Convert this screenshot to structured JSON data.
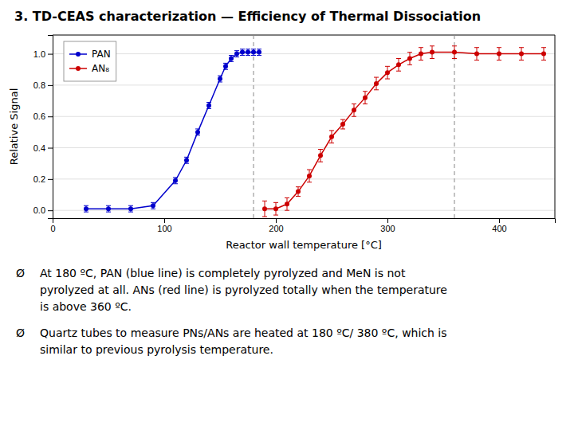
{
  "chart_data": {
    "type": "line",
    "title": "3. TD-CEAS characterization — Efficiency of Thermal Dissociation",
    "x_label": "Reactor wall temperature [°C]",
    "y_label": "Relative Signal",
    "xlim": [
      0,
      450
    ],
    "ylim": [
      -0.05,
      1.12
    ],
    "xticks": [
      0,
      100,
      200,
      300,
      400
    ],
    "yticks": [
      {
        "value": 0.0,
        "label": "0.0"
      },
      0.2,
      0.4,
      0.6,
      0.8,
      {
        "value": 1.0,
        "label": "1.0"
      }
    ],
    "grid": "y",
    "legend": "upper left",
    "series": [
      {
        "name": "PAN",
        "color": "#0000cc",
        "marker": "o",
        "line_style": "solid",
        "x": [
          30,
          50,
          70,
          90,
          110,
          120,
          130,
          140,
          150,
          155,
          160,
          165,
          170,
          175,
          180,
          185
        ],
        "values": [
          0.01,
          0.01,
          0.01,
          0.03,
          0.19,
          0.32,
          0.5,
          0.67,
          0.84,
          0.92,
          0.97,
          1.0,
          1.01,
          1.01,
          1.01,
          1.01
        ],
        "errors": [
          0.02,
          0.02,
          0.02,
          0.02,
          0.02,
          0.02,
          0.02,
          0.02,
          0.02,
          0.02,
          0.02,
          0.02,
          0.02,
          0.02,
          0.02,
          0.02
        ]
      },
      {
        "name": "AN₈",
        "color": "#cc0000",
        "marker": "o",
        "line_style": "solid",
        "x": [
          190,
          200,
          210,
          220,
          230,
          240,
          250,
          260,
          270,
          280,
          290,
          300,
          310,
          320,
          330,
          340,
          360,
          380,
          400,
          420,
          440
        ],
        "values": [
          0.01,
          0.01,
          0.04,
          0.12,
          0.22,
          0.35,
          0.47,
          0.55,
          0.64,
          0.72,
          0.81,
          0.88,
          0.93,
          0.97,
          1.0,
          1.01,
          1.01,
          1.0,
          1.0,
          1.0,
          1.0
        ],
        "errors": [
          0.05,
          0.04,
          0.04,
          0.03,
          0.04,
          0.04,
          0.04,
          0.03,
          0.04,
          0.04,
          0.04,
          0.04,
          0.04,
          0.04,
          0.04,
          0.04,
          0.04,
          0.04,
          0.04,
          0.04,
          0.04
        ]
      }
    ],
    "vlines": [
      180,
      360
    ],
    "annotations": [
      {
        "bullet": "Ø",
        "lines": [
          "At 180 ºC, PAN (blue line) is completely pyrolyzed and MeN is not",
          "pyrolyzed at all. ANs (red line) is pyrolyzed totally when the temperature",
          "is above 360 ºC."
        ]
      },
      {
        "bullet": "Ø",
        "lines": [
          "Quartz tubes to measure PNs/ANs are heated at 180 ºC/ 380 ºC, which is",
          "similar to previous pyrolysis temperature."
        ]
      }
    ]
  }
}
